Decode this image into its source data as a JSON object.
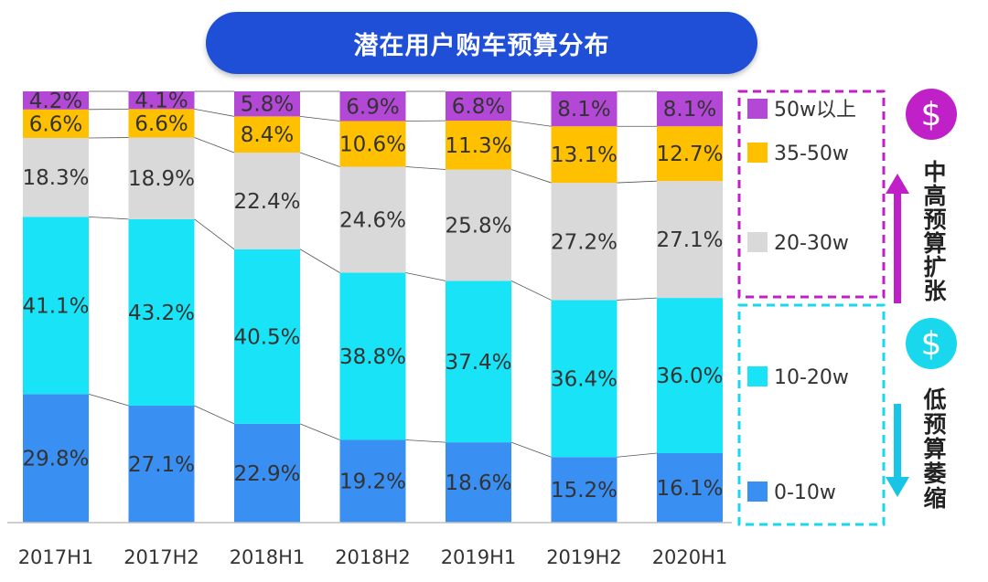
{
  "title": "潜在用户购车预算分布",
  "chart_data": {
    "type": "bar",
    "stacked": true,
    "percent": true,
    "title": "潜在用户购车预算分布",
    "categories": [
      "2017H1",
      "2017H2",
      "2018H1",
      "2018H2",
      "2019H1",
      "2019H2",
      "2020H1"
    ],
    "ylim": [
      0,
      100
    ],
    "series": [
      {
        "name": "0-10w",
        "color": "#3a8ff2",
        "values": [
          29.8,
          27.1,
          22.9,
          19.2,
          18.6,
          15.2,
          16.1
        ],
        "labels": [
          "29.8%",
          "27.1%",
          "22.9%",
          "19.2%",
          "18.6%",
          "15.2%",
          "16.1%"
        ]
      },
      {
        "name": "10-20w",
        "color": "#19e3f7",
        "values": [
          41.1,
          43.2,
          40.5,
          38.8,
          37.4,
          36.4,
          36.0
        ],
        "labels": [
          "41.1%",
          "43.2%",
          "40.5%",
          "38.8%",
          "37.4%",
          "36.4%",
          "36.0%"
        ]
      },
      {
        "name": "20-30w",
        "color": "#d9d9d9",
        "values": [
          18.3,
          18.9,
          22.4,
          24.6,
          25.8,
          27.2,
          27.1
        ],
        "labels": [
          "18.3%",
          "18.9%",
          "22.4%",
          "24.6%",
          "25.8%",
          "27.2%",
          "27.1%"
        ]
      },
      {
        "name": "35-50w",
        "color": "#ffc000",
        "values": [
          6.6,
          6.6,
          8.4,
          10.6,
          11.3,
          13.1,
          12.7
        ],
        "labels": [
          "6.6%",
          "6.6%",
          "8.4%",
          "10.6%",
          "11.3%",
          "13.1%",
          "12.7%"
        ]
      },
      {
        "name": "50w以上",
        "color": "#b347d6",
        "values": [
          4.2,
          4.1,
          5.8,
          6.9,
          6.8,
          8.1,
          8.1
        ],
        "labels": [
          "4.2%",
          "4.1%",
          "5.8%",
          "6.9%",
          "6.8%",
          "8.1%",
          "8.1%"
        ]
      }
    ],
    "legend_position": "right",
    "legend_order": [
      "50w以上",
      "35-50w",
      "20-30w",
      "10-20w",
      "0-10w"
    ],
    "annotations": {
      "upper": {
        "text": "中高预算扩张",
        "icon": "dollar-icon",
        "color": "#c020c8"
      },
      "lower": {
        "text": "低预算萎缩",
        "icon": "dollar-icon",
        "color": "#19d8ee"
      }
    }
  }
}
